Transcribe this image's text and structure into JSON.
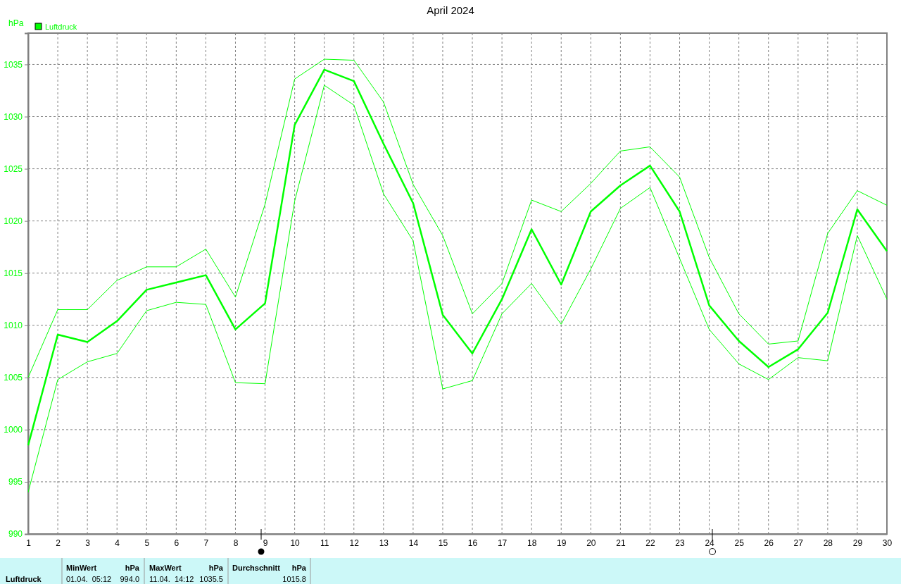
{
  "chart_data": {
    "type": "line",
    "title": "April 2024",
    "ylabel": "hPa",
    "x": [
      1,
      2,
      3,
      4,
      5,
      6,
      7,
      8,
      9,
      10,
      11,
      12,
      13,
      14,
      15,
      16,
      17,
      18,
      19,
      20,
      21,
      22,
      23,
      24,
      25,
      26,
      27,
      28,
      29,
      30
    ],
    "series": [
      {
        "name": "Luftdruck",
        "color": "#00ff00",
        "values": [
          998.5,
          1009.1,
          1008.4,
          1010.4,
          1013.4,
          1014.1,
          1014.8,
          1009.6,
          1012.1,
          1029.2,
          1034.5,
          1033.4,
          1027.4,
          1021.7,
          1011.0,
          1007.3,
          1012.5,
          1019.2,
          1013.9,
          1020.9,
          1023.4,
          1025.3,
          1020.9,
          1011.9,
          1008.5,
          1006.0,
          1007.7,
          1011.2,
          1021.1,
          1017.1
        ]
      },
      {
        "color": "#00ff00",
        "values": [
          1005.0,
          1011.5,
          1011.5,
          1014.3,
          1015.6,
          1015.6,
          1017.3,
          1012.7,
          1021.6,
          1033.6,
          1035.5,
          1035.4,
          1031.4,
          1023.5,
          1018.6,
          1011.1,
          1014.0,
          1022.0,
          1020.9,
          1023.6,
          1026.7,
          1027.1,
          1024.2,
          1016.5,
          1011.1,
          1008.2,
          1008.5,
          1018.8,
          1022.9,
          1021.5
        ]
      },
      {
        "color": "#00ff00",
        "values": [
          994.0,
          1004.8,
          1006.5,
          1007.3,
          1011.4,
          1012.2,
          1012.0,
          1004.5,
          1004.4,
          1021.9,
          1033.0,
          1031.1,
          1022.6,
          1018.1,
          1003.9,
          1004.7,
          1011.1,
          1014.0,
          1010.1,
          1015.4,
          1021.2,
          1023.2,
          1016.4,
          1009.6,
          1006.3,
          1004.8,
          1006.9,
          1006.6,
          1018.6,
          1012.5
        ]
      }
    ],
    "xlim": [
      1,
      30
    ],
    "xticks": [
      1,
      2,
      3,
      4,
      5,
      6,
      7,
      8,
      9,
      10,
      11,
      12,
      13,
      14,
      15,
      16,
      17,
      18,
      19,
      20,
      21,
      22,
      23,
      24,
      25,
      26,
      27,
      28,
      29,
      30
    ],
    "ylim": [
      990,
      1038
    ],
    "yticks": [
      990,
      995,
      1000,
      1005,
      1010,
      1015,
      1020,
      1025,
      1030,
      1035
    ],
    "grid": true,
    "legend": "top left",
    "marker": "none",
    "line_style": "solid",
    "annotations": [
      "Luftdruck",
      "MinWert",
      "hPa",
      "01.04.  05:12",
      "994.0",
      "MaxWert",
      "hPa",
      "11.04.  14:12",
      "1035.5",
      "Durchschnitt",
      "hPa",
      "1015.8"
    ]
  }
}
